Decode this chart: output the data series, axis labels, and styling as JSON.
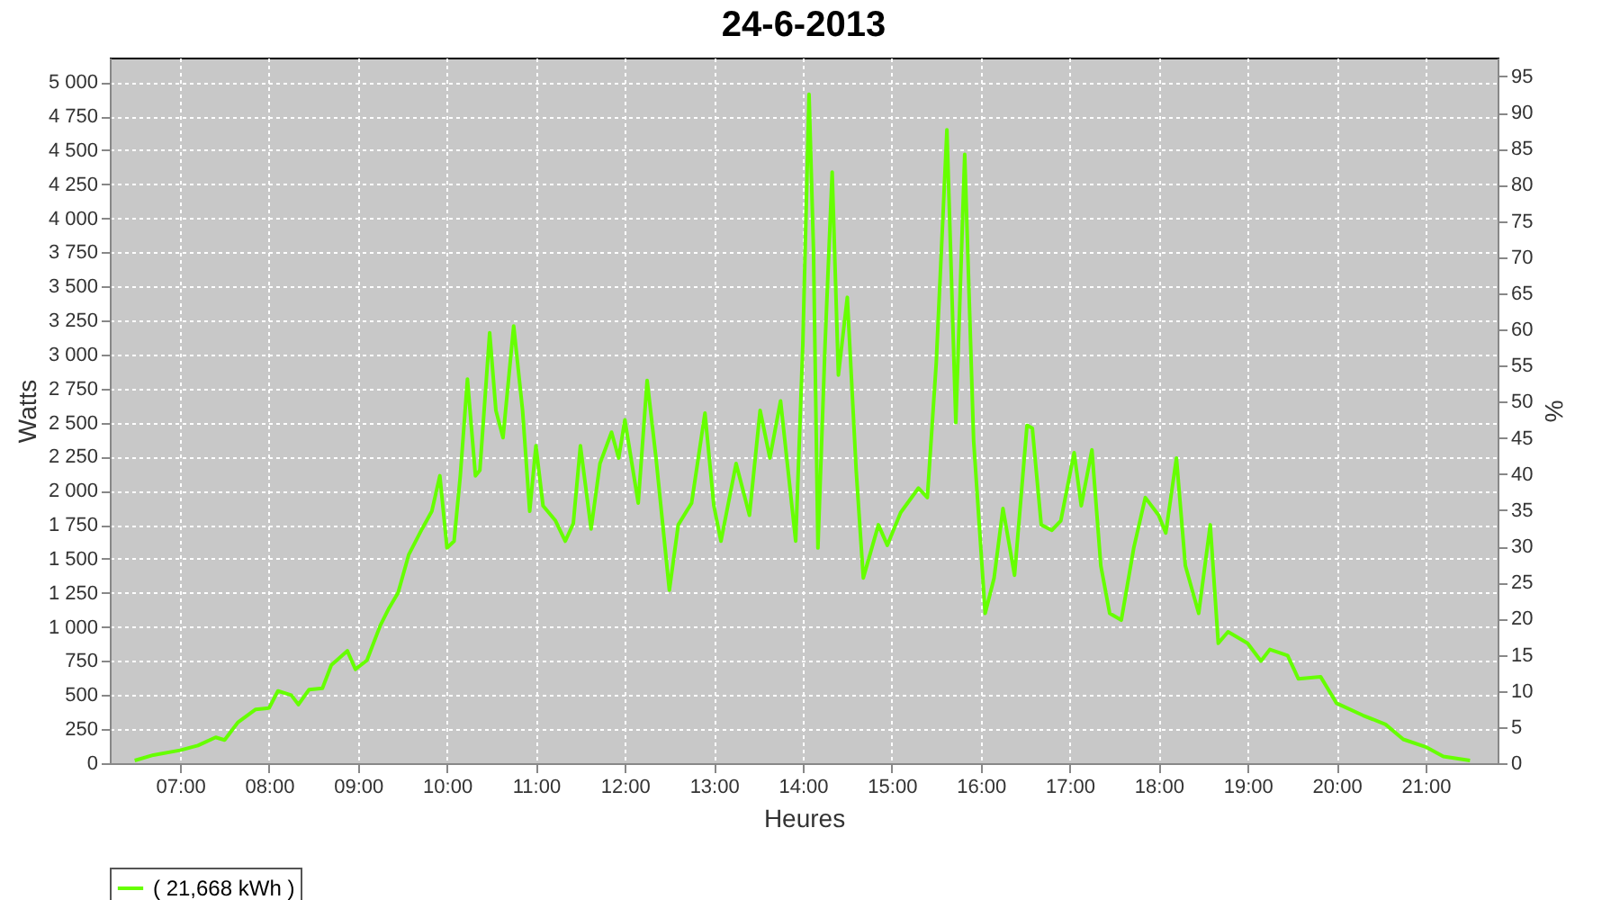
{
  "chart_data": {
    "type": "line",
    "title": "24-6-2013",
    "xlabel": "Heures",
    "ylabel": "Watts",
    "y2label": "%",
    "xlim": [
      6.21,
      21.81
    ],
    "xticks": [
      {
        "value": 7,
        "label": "07:00"
      },
      {
        "value": 8,
        "label": "08:00"
      },
      {
        "value": 9,
        "label": "09:00"
      },
      {
        "value": 10,
        "label": "10:00"
      },
      {
        "value": 11,
        "label": "11:00"
      },
      {
        "value": 12,
        "label": "12:00"
      },
      {
        "value": 13,
        "label": "13:00"
      },
      {
        "value": 14,
        "label": "14:00"
      },
      {
        "value": 15,
        "label": "15:00"
      },
      {
        "value": 16,
        "label": "16:00"
      },
      {
        "value": 17,
        "label": "17:00"
      },
      {
        "value": 18,
        "label": "18:00"
      },
      {
        "value": 19,
        "label": "19:00"
      },
      {
        "value": 20,
        "label": "20:00"
      },
      {
        "value": 21,
        "label": "21:00"
      }
    ],
    "ylim": [
      0,
      5180
    ],
    "yticks": [
      0,
      250,
      500,
      750,
      {
        "value": 1000,
        "label": "1 000"
      },
      {
        "value": 1250,
        "label": "1 250"
      },
      {
        "value": 1500,
        "label": "1 500"
      },
      {
        "value": 1750,
        "label": "1 750"
      },
      {
        "value": 2000,
        "label": "2 000"
      },
      {
        "value": 2250,
        "label": "2 250"
      },
      {
        "value": 2500,
        "label": "2 500"
      },
      {
        "value": 2750,
        "label": "2 750"
      },
      {
        "value": 3000,
        "label": "3 000"
      },
      {
        "value": 3250,
        "label": "3 250"
      },
      {
        "value": 3500,
        "label": "3 500"
      },
      {
        "value": 3750,
        "label": "3 750"
      },
      {
        "value": 4000,
        "label": "4 000"
      },
      {
        "value": 4250,
        "label": "4 250"
      },
      {
        "value": 4500,
        "label": "4 500"
      },
      {
        "value": 4750,
        "label": "4 750"
      },
      {
        "value": 5000,
        "label": "5 000"
      }
    ],
    "y2lim": [
      0,
      97.6
    ],
    "y2ticks": [
      0,
      5,
      10,
      15,
      20,
      25,
      30,
      35,
      40,
      45,
      50,
      55,
      60,
      65,
      70,
      75,
      80,
      85,
      90,
      95
    ],
    "grid": true,
    "legend": "bottom",
    "line_style": "solid",
    "series": [
      {
        "name": "( 21,668 kWh )",
        "color": "#66ff00",
        "x": [
          6.49,
          6.7,
          7.0,
          7.2,
          7.4,
          7.5,
          7.65,
          7.85,
          8.0,
          8.1,
          8.25,
          8.33,
          8.45,
          8.6,
          8.7,
          8.88,
          8.97,
          9.1,
          9.25,
          9.35,
          9.45,
          9.57,
          9.72,
          9.83,
          9.92,
          10.0,
          10.08,
          10.15,
          10.23,
          10.32,
          10.37,
          10.48,
          10.55,
          10.63,
          10.75,
          10.85,
          10.93,
          11.0,
          11.08,
          11.22,
          11.33,
          11.42,
          11.5,
          11.62,
          11.72,
          11.85,
          11.93,
          12.0,
          12.15,
          12.25,
          12.35,
          12.5,
          12.6,
          12.75,
          12.9,
          13.0,
          13.08,
          13.25,
          13.4,
          13.52,
          13.63,
          13.75,
          13.92,
          14.0,
          14.07,
          14.12,
          14.17,
          14.25,
          14.33,
          14.4,
          14.5,
          14.6,
          14.68,
          14.85,
          14.95,
          15.1,
          15.3,
          15.4,
          15.5,
          15.62,
          15.72,
          15.82,
          15.92,
          16.05,
          16.15,
          16.25,
          16.38,
          16.52,
          16.58,
          16.68,
          16.8,
          16.9,
          17.05,
          17.13,
          17.25,
          17.35,
          17.45,
          17.58,
          17.72,
          17.85,
          18.0,
          18.08,
          18.2,
          18.3,
          18.45,
          18.58,
          18.67,
          18.78,
          19.0,
          19.15,
          19.25,
          19.45,
          19.57,
          19.82,
          20.0,
          20.3,
          20.55,
          20.75,
          21.0,
          21.2,
          21.5
        ],
        "values": [
          20,
          60,
          95,
          130,
          190,
          170,
          300,
          395,
          405,
          530,
          500,
          430,
          540,
          550,
          720,
          825,
          690,
          755,
          1010,
          1140,
          1250,
          1530,
          1720,
          1850,
          2110,
          1580,
          1630,
          2110,
          2820,
          2110,
          2150,
          3160,
          2590,
          2390,
          3210,
          2590,
          1850,
          2330,
          1890,
          1780,
          1630,
          1760,
          2330,
          1720,
          2200,
          2430,
          2240,
          2520,
          1910,
          2810,
          2240,
          1270,
          1750,
          1910,
          2570,
          1890,
          1630,
          2200,
          1820,
          2590,
          2240,
          2660,
          1630,
          3070,
          4910,
          3770,
          1580,
          3070,
          4340,
          2850,
          3420,
          2150,
          1360,
          1750,
          1600,
          1840,
          2020,
          1950,
          2940,
          4650,
          2500,
          4470,
          2370,
          1100,
          1360,
          1870,
          1380,
          2480,
          2460,
          1750,
          1710,
          1780,
          2280,
          1890,
          2300,
          1450,
          1100,
          1050,
          1580,
          1950,
          1820,
          1690,
          2240,
          1450,
          1100,
          1750,
          880,
          965,
          880,
          750,
          835,
          790,
          620,
          635,
          440,
          350,
          285,
          175,
          120,
          50,
          20
        ]
      }
    ]
  }
}
